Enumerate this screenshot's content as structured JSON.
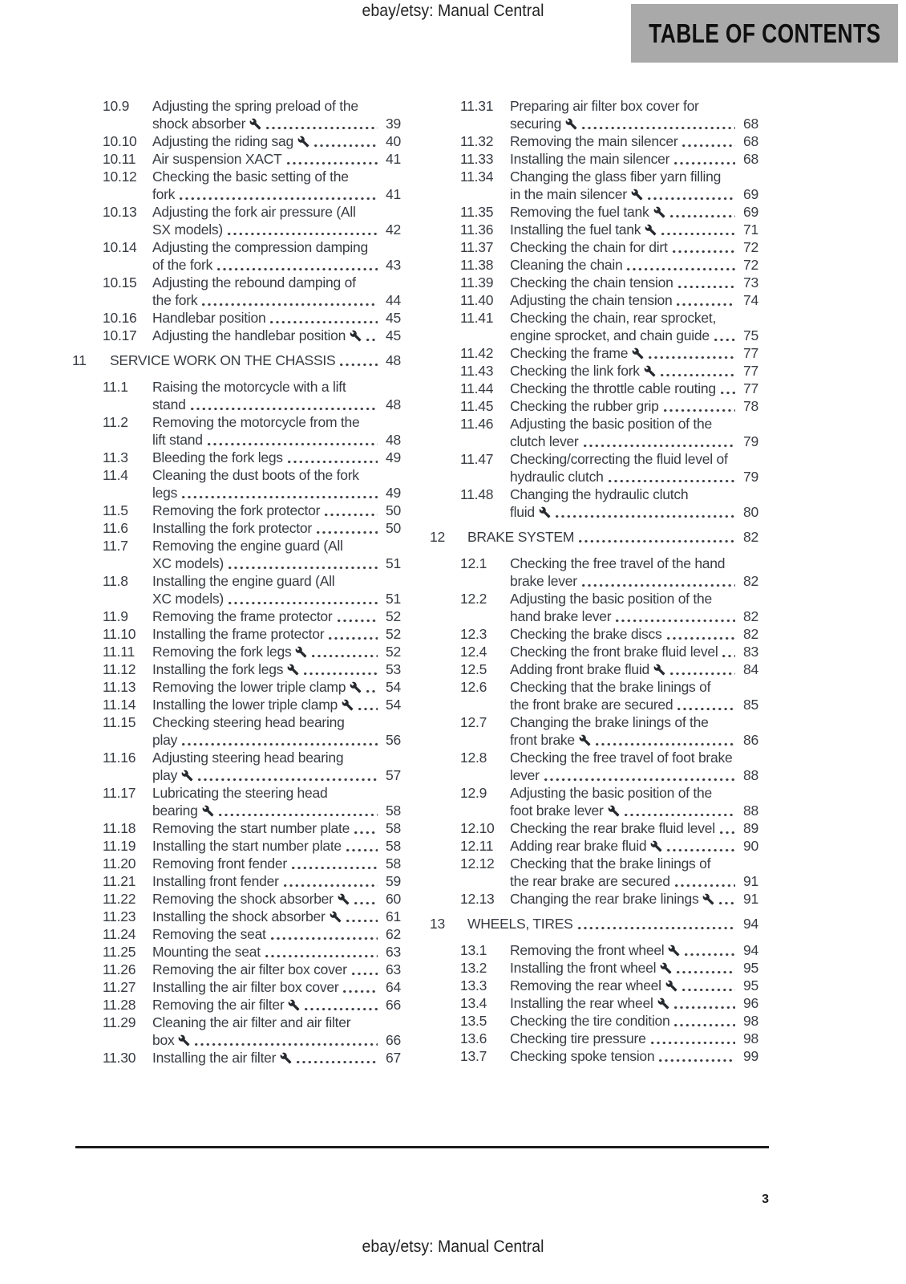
{
  "header": {
    "site_label": "ebay/etsy: Manual Central",
    "title": "TABLE OF CONTENTS"
  },
  "footer": {
    "site_label": "ebay/etsy: Manual Central",
    "page_number": "3"
  },
  "colors": {
    "title_box_bg": "#a9a9a9",
    "title_text": "#0e0e0e",
    "body_text": "#383c42",
    "rule": "#1c1c1c",
    "background": "#ffffff"
  },
  "icons": {
    "service_marker": "wrench-icon"
  },
  "toc": {
    "left": [
      {
        "num": "10.9",
        "lines": [
          "Adjusting the spring preload of the",
          "shock absorber"
        ],
        "wrench": true,
        "page": "39"
      },
      {
        "num": "10.10",
        "lines": [
          "Adjusting the riding sag"
        ],
        "wrench": true,
        "page": "40"
      },
      {
        "num": "10.11",
        "lines": [
          "Air suspension XACT"
        ],
        "page": "41"
      },
      {
        "num": "10.12",
        "lines": [
          "Checking the basic setting of the",
          "fork"
        ],
        "page": "41"
      },
      {
        "num": "10.13",
        "lines": [
          "Adjusting the fork air pressure (All",
          "SX models)"
        ],
        "page": "42"
      },
      {
        "num": "10.14",
        "lines": [
          "Adjusting the compression damping",
          "of the fork"
        ],
        "page": "43"
      },
      {
        "num": "10.15",
        "lines": [
          "Adjusting the rebound damping of",
          "the fork"
        ],
        "page": "44"
      },
      {
        "num": "10.16",
        "lines": [
          "Handlebar position"
        ],
        "page": "45"
      },
      {
        "num": "10.17",
        "lines": [
          "Adjusting the handlebar position"
        ],
        "wrench": true,
        "page": "45"
      },
      {
        "num": "11",
        "lines": [
          "SERVICE WORK ON THE CHASSIS"
        ],
        "page": "48",
        "section": true
      },
      {
        "num": "11.1",
        "lines": [
          "Raising the motorcycle with a lift",
          "stand"
        ],
        "page": "48"
      },
      {
        "num": "11.2",
        "lines": [
          "Removing the motorcycle from the",
          "lift stand"
        ],
        "page": "48"
      },
      {
        "num": "11.3",
        "lines": [
          "Bleeding the fork legs"
        ],
        "page": "49"
      },
      {
        "num": "11.4",
        "lines": [
          "Cleaning the dust boots of the fork",
          "legs"
        ],
        "page": "49"
      },
      {
        "num": "11.5",
        "lines": [
          "Removing the fork protector"
        ],
        "page": "50"
      },
      {
        "num": "11.6",
        "lines": [
          "Installing the fork protector"
        ],
        "page": "50"
      },
      {
        "num": "11.7",
        "lines": [
          "Removing the engine guard (All",
          "XC models)"
        ],
        "page": "51"
      },
      {
        "num": "11.8",
        "lines": [
          "Installing the engine guard (All",
          "XC models)"
        ],
        "page": "51"
      },
      {
        "num": "11.9",
        "lines": [
          "Removing the frame protector"
        ],
        "page": "52"
      },
      {
        "num": "11.10",
        "lines": [
          "Installing the frame protector"
        ],
        "page": "52"
      },
      {
        "num": "11.11",
        "lines": [
          "Removing the fork legs"
        ],
        "wrench": true,
        "page": "52"
      },
      {
        "num": "11.12",
        "lines": [
          "Installing the fork legs"
        ],
        "wrench": true,
        "page": "53"
      },
      {
        "num": "11.13",
        "lines": [
          "Removing the lower triple clamp"
        ],
        "wrench": true,
        "page": "54"
      },
      {
        "num": "11.14",
        "lines": [
          "Installing the lower triple clamp"
        ],
        "wrench": true,
        "page": "54"
      },
      {
        "num": "11.15",
        "lines": [
          "Checking steering head bearing",
          "play"
        ],
        "page": "56"
      },
      {
        "num": "11.16",
        "lines": [
          "Adjusting steering head bearing",
          "play"
        ],
        "wrench": true,
        "page": "57"
      },
      {
        "num": "11.17",
        "lines": [
          "Lubricating the steering head",
          "bearing"
        ],
        "wrench": true,
        "page": "58"
      },
      {
        "num": "11.18",
        "lines": [
          "Removing the start number plate"
        ],
        "page": "58"
      },
      {
        "num": "11.19",
        "lines": [
          "Installing the start number plate"
        ],
        "page": "58"
      },
      {
        "num": "11.20",
        "lines": [
          "Removing front fender"
        ],
        "page": "58"
      },
      {
        "num": "11.21",
        "lines": [
          "Installing front fender"
        ],
        "page": "59"
      },
      {
        "num": "11.22",
        "lines": [
          "Removing the shock absorber"
        ],
        "wrench": true,
        "page": "60"
      },
      {
        "num": "11.23",
        "lines": [
          "Installing the shock absorber"
        ],
        "wrench": true,
        "page": "61"
      },
      {
        "num": "11.24",
        "lines": [
          "Removing the seat"
        ],
        "page": "62"
      },
      {
        "num": "11.25",
        "lines": [
          "Mounting the seat"
        ],
        "page": "63"
      },
      {
        "num": "11.26",
        "lines": [
          "Removing the air filter box cover"
        ],
        "page": "63"
      },
      {
        "num": "11.27",
        "lines": [
          "Installing the air filter box cover"
        ],
        "page": "64"
      },
      {
        "num": "11.28",
        "lines": [
          "Removing the air filter"
        ],
        "wrench": true,
        "page": "66"
      },
      {
        "num": "11.29",
        "lines": [
          "Cleaning the air filter and air filter",
          "box"
        ],
        "wrench": true,
        "page": "66"
      },
      {
        "num": "11.30",
        "lines": [
          "Installing the air filter"
        ],
        "wrench": true,
        "page": "67"
      }
    ],
    "right": [
      {
        "num": "11.31",
        "lines": [
          "Preparing air filter box cover for",
          "securing"
        ],
        "wrench": true,
        "page": "68"
      },
      {
        "num": "11.32",
        "lines": [
          "Removing the main silencer"
        ],
        "page": "68"
      },
      {
        "num": "11.33",
        "lines": [
          "Installing the main silencer"
        ],
        "page": "68"
      },
      {
        "num": "11.34",
        "lines": [
          "Changing the glass fiber yarn filling",
          "in the main silencer"
        ],
        "wrench": true,
        "page": "69"
      },
      {
        "num": "11.35",
        "lines": [
          "Removing the fuel tank"
        ],
        "wrench": true,
        "page": "69"
      },
      {
        "num": "11.36",
        "lines": [
          "Installing the fuel tank"
        ],
        "wrench": true,
        "page": "71"
      },
      {
        "num": "11.37",
        "lines": [
          "Checking the chain for dirt"
        ],
        "page": "72"
      },
      {
        "num": "11.38",
        "lines": [
          "Cleaning the chain"
        ],
        "page": "72"
      },
      {
        "num": "11.39",
        "lines": [
          "Checking the chain tension"
        ],
        "page": "73"
      },
      {
        "num": "11.40",
        "lines": [
          "Adjusting the chain tension"
        ],
        "page": "74"
      },
      {
        "num": "11.41",
        "lines": [
          "Checking the chain, rear sprocket,",
          "engine sprocket, and chain guide"
        ],
        "page": "75"
      },
      {
        "num": "11.42",
        "lines": [
          "Checking the frame"
        ],
        "wrench": true,
        "page": "77"
      },
      {
        "num": "11.43",
        "lines": [
          "Checking the link fork"
        ],
        "wrench": true,
        "page": "77"
      },
      {
        "num": "11.44",
        "lines": [
          "Checking the throttle cable routing"
        ],
        "page": "77"
      },
      {
        "num": "11.45",
        "lines": [
          "Checking the rubber grip"
        ],
        "page": "78"
      },
      {
        "num": "11.46",
        "lines": [
          "Adjusting the basic position of the",
          "clutch lever"
        ],
        "page": "79"
      },
      {
        "num": "11.47",
        "lines": [
          "Checking/correcting the fluid level of",
          "hydraulic clutch"
        ],
        "page": "79"
      },
      {
        "num": "11.48",
        "lines": [
          "Changing the hydraulic clutch",
          "fluid"
        ],
        "wrench": true,
        "page": "80"
      },
      {
        "num": "12",
        "lines": [
          "BRAKE SYSTEM"
        ],
        "page": "82",
        "section": true
      },
      {
        "num": "12.1",
        "lines": [
          "Checking the free travel of the hand",
          "brake lever"
        ],
        "page": "82"
      },
      {
        "num": "12.2",
        "lines": [
          "Adjusting the basic position of the",
          "hand brake lever"
        ],
        "page": "82"
      },
      {
        "num": "12.3",
        "lines": [
          "Checking the brake discs"
        ],
        "page": "82"
      },
      {
        "num": "12.4",
        "lines": [
          "Checking the front brake fluid level"
        ],
        "page": "83"
      },
      {
        "num": "12.5",
        "lines": [
          "Adding front brake fluid"
        ],
        "wrench": true,
        "page": "84"
      },
      {
        "num": "12.6",
        "lines": [
          "Checking that the brake linings of",
          "the front brake are secured"
        ],
        "page": "85"
      },
      {
        "num": "12.7",
        "lines": [
          "Changing the brake linings of the",
          "front brake"
        ],
        "wrench": true,
        "page": "86"
      },
      {
        "num": "12.8",
        "lines": [
          "Checking the free travel of foot brake",
          "lever"
        ],
        "page": "88"
      },
      {
        "num": "12.9",
        "lines": [
          "Adjusting the basic position of the",
          "foot brake lever"
        ],
        "wrench": true,
        "page": "88"
      },
      {
        "num": "12.10",
        "lines": [
          "Checking the rear brake fluid level"
        ],
        "page": "89"
      },
      {
        "num": "12.11",
        "lines": [
          "Adding rear brake fluid"
        ],
        "wrench": true,
        "page": "90"
      },
      {
        "num": "12.12",
        "lines": [
          "Checking that the brake linings of",
          "the rear brake are secured"
        ],
        "page": "91"
      },
      {
        "num": "12.13",
        "lines": [
          "Changing the rear brake linings"
        ],
        "wrench": true,
        "page": "91"
      },
      {
        "num": "13",
        "lines": [
          "WHEELS, TIRES"
        ],
        "page": "94",
        "section": true
      },
      {
        "num": "13.1",
        "lines": [
          "Removing the front wheel"
        ],
        "wrench": true,
        "page": "94"
      },
      {
        "num": "13.2",
        "lines": [
          "Installing the front wheel"
        ],
        "wrench": true,
        "page": "95"
      },
      {
        "num": "13.3",
        "lines": [
          "Removing the rear wheel"
        ],
        "wrench": true,
        "page": "95"
      },
      {
        "num": "13.4",
        "lines": [
          "Installing the rear wheel"
        ],
        "wrench": true,
        "page": "96"
      },
      {
        "num": "13.5",
        "lines": [
          "Checking the tire condition"
        ],
        "page": "98"
      },
      {
        "num": "13.6",
        "lines": [
          "Checking tire pressure"
        ],
        "page": "98"
      },
      {
        "num": "13.7",
        "lines": [
          "Checking spoke tension"
        ],
        "page": "99"
      }
    ]
  }
}
